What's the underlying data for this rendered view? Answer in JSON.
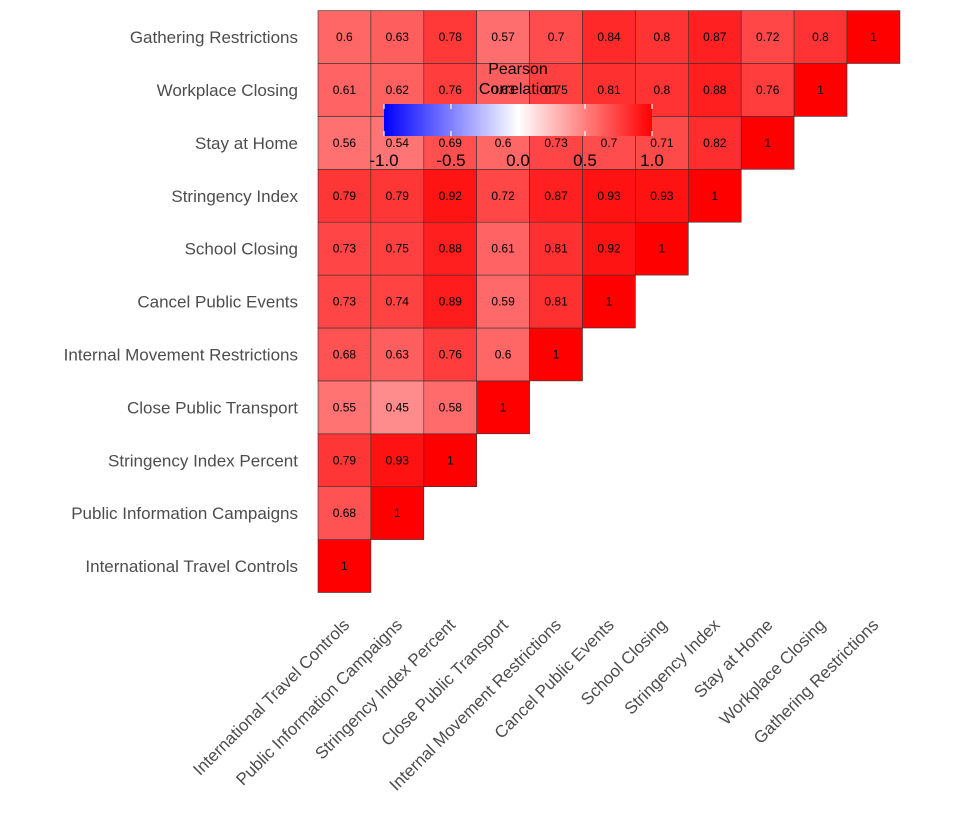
{
  "chart_data": {
    "type": "heatmap",
    "variables": [
      "International Travel Controls",
      "Public Information Campaigns",
      "Stringency Index Percent",
      "Close Public Transport",
      "Internal Movement Restrictions",
      "Cancel Public Events",
      "School Closing",
      "Stringency Index",
      "Stay at Home",
      "Workplace Closing",
      "Gathering Restrictions"
    ],
    "matrix": [
      [
        1
      ],
      [
        0.68,
        1
      ],
      [
        0.79,
        0.93,
        1
      ],
      [
        0.55,
        0.45,
        0.58,
        1
      ],
      [
        0.68,
        0.63,
        0.76,
        0.6,
        1
      ],
      [
        0.73,
        0.74,
        0.89,
        0.59,
        0.81,
        1
      ],
      [
        0.73,
        0.75,
        0.88,
        0.61,
        0.81,
        0.92,
        1
      ],
      [
        0.79,
        0.79,
        0.92,
        0.72,
        0.87,
        0.93,
        0.93,
        1
      ],
      [
        0.56,
        0.54,
        0.69,
        0.6,
        0.73,
        0.7,
        0.71,
        0.82,
        1
      ],
      [
        0.61,
        0.62,
        0.76,
        0.63,
        0.75,
        0.81,
        0.8,
        0.88,
        0.76,
        1
      ],
      [
        0.6,
        0.63,
        0.78,
        0.57,
        0.7,
        0.84,
        0.8,
        0.87,
        0.72,
        0.8,
        1
      ]
    ],
    "legend": {
      "title_line1": "Pearson",
      "title_line2": "Correlation",
      "ticks": [
        "-1.0",
        "-0.5",
        "0.0",
        "0.5",
        "1.0"
      ],
      "tick_values": [
        -1.0,
        -0.5,
        0.0,
        0.5,
        1.0
      ],
      "limits": [
        -1,
        1
      ],
      "colors": {
        "low": "#0000ff",
        "mid": "#ffffff",
        "high": "#ff0000"
      },
      "placement": "top-left"
    },
    "cell_border_color": "#333333"
  }
}
